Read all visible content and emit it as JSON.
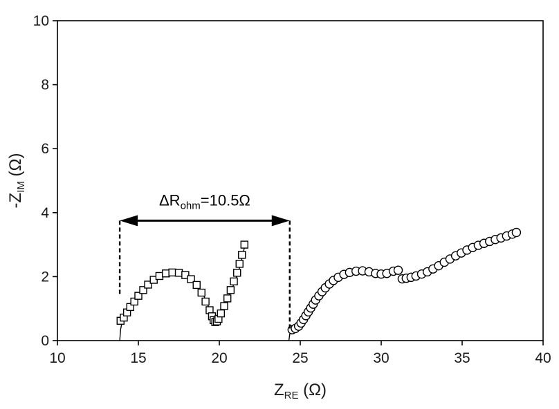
{
  "chart_data": {
    "type": "scatter",
    "title": "",
    "xlabel": "Z",
    "xlabel_sub": "RE",
    "xlabel_unit": " (Ω)",
    "ylabel": "-Z",
    "ylabel_sub": "IM",
    "ylabel_unit": " (Ω)",
    "xlim": [
      10,
      40
    ],
    "ylim": [
      0,
      10
    ],
    "xticks": [
      "10",
      "15",
      "20",
      "25",
      "30",
      "35",
      "40"
    ],
    "yticks": [
      "0",
      "2",
      "4",
      "6",
      "8",
      "10"
    ],
    "grid": false,
    "legend": "none",
    "colors": {
      "marker": "#000000",
      "axis": "#000000",
      "fit": "#000000"
    },
    "series": [
      {
        "marker": "square",
        "points": [
          [
            13.9,
            0.62
          ],
          [
            14.1,
            0.72
          ],
          [
            14.3,
            0.88
          ],
          [
            14.5,
            1.05
          ],
          [
            14.75,
            1.22
          ],
          [
            15.0,
            1.4
          ],
          [
            15.3,
            1.58
          ],
          [
            15.6,
            1.75
          ],
          [
            15.95,
            1.9
          ],
          [
            16.3,
            2.02
          ],
          [
            16.7,
            2.1
          ],
          [
            17.1,
            2.13
          ],
          [
            17.5,
            2.12
          ],
          [
            17.9,
            2.05
          ],
          [
            18.25,
            1.92
          ],
          [
            18.6,
            1.74
          ],
          [
            18.9,
            1.5
          ],
          [
            19.15,
            1.22
          ],
          [
            19.4,
            0.95
          ],
          [
            19.55,
            0.76
          ],
          [
            19.65,
            0.64
          ],
          [
            19.75,
            0.58
          ],
          [
            19.85,
            0.6
          ],
          [
            19.95,
            0.68
          ],
          [
            20.1,
            0.85
          ],
          [
            20.3,
            1.08
          ],
          [
            20.5,
            1.32
          ],
          [
            20.7,
            1.58
          ],
          [
            20.9,
            1.85
          ],
          [
            21.1,
            2.12
          ],
          [
            21.25,
            2.4
          ],
          [
            21.4,
            2.68
          ],
          [
            21.55,
            3.0
          ]
        ]
      },
      {
        "marker": "circle",
        "points": [
          [
            24.5,
            0.34
          ],
          [
            24.7,
            0.38
          ],
          [
            24.9,
            0.45
          ],
          [
            25.05,
            0.55
          ],
          [
            25.2,
            0.66
          ],
          [
            25.35,
            0.78
          ],
          [
            25.5,
            0.9
          ],
          [
            25.65,
            1.02
          ],
          [
            25.8,
            1.14
          ],
          [
            25.95,
            1.27
          ],
          [
            26.15,
            1.4
          ],
          [
            26.35,
            1.53
          ],
          [
            26.55,
            1.65
          ],
          [
            26.8,
            1.77
          ],
          [
            27.05,
            1.88
          ],
          [
            27.35,
            1.98
          ],
          [
            27.7,
            2.07
          ],
          [
            28.05,
            2.13
          ],
          [
            28.45,
            2.17
          ],
          [
            28.85,
            2.18
          ],
          [
            29.25,
            2.15
          ],
          [
            29.65,
            2.1
          ],
          [
            30.0,
            2.08
          ],
          [
            30.35,
            2.1
          ],
          [
            30.75,
            2.17
          ],
          [
            31.05,
            2.2
          ],
          [
            31.3,
            1.93
          ],
          [
            31.55,
            1.95
          ],
          [
            31.85,
            1.98
          ],
          [
            32.15,
            2.02
          ],
          [
            32.5,
            2.08
          ],
          [
            32.85,
            2.15
          ],
          [
            33.2,
            2.24
          ],
          [
            33.55,
            2.34
          ],
          [
            33.9,
            2.45
          ],
          [
            34.25,
            2.55
          ],
          [
            34.6,
            2.65
          ],
          [
            34.95,
            2.74
          ],
          [
            35.3,
            2.83
          ],
          [
            35.65,
            2.91
          ],
          [
            36.0,
            2.98
          ],
          [
            36.35,
            3.04
          ],
          [
            36.7,
            3.1
          ],
          [
            37.05,
            3.16
          ],
          [
            37.4,
            3.21
          ],
          [
            37.75,
            3.27
          ],
          [
            38.1,
            3.33
          ],
          [
            38.35,
            3.38
          ]
        ]
      }
    ],
    "fit_curves": [
      [
        [
          13.85,
          0.0
        ],
        [
          13.9,
          0.35
        ],
        [
          14.05,
          0.72
        ],
        [
          14.4,
          1.1
        ],
        [
          14.9,
          1.42
        ],
        [
          15.5,
          1.72
        ],
        [
          16.2,
          1.98
        ],
        [
          17.0,
          2.1
        ],
        [
          17.8,
          2.06
        ],
        [
          18.5,
          1.82
        ],
        [
          19.0,
          1.45
        ],
        [
          19.4,
          0.98
        ],
        [
          19.65,
          0.66
        ],
        [
          19.8,
          0.57
        ],
        [
          19.95,
          0.63
        ],
        [
          20.2,
          0.88
        ],
        [
          20.6,
          1.38
        ],
        [
          21.0,
          1.9
        ],
        [
          21.3,
          2.35
        ],
        [
          21.6,
          3.02
        ]
      ],
      [
        [
          24.3,
          0.0
        ],
        [
          24.35,
          0.2
        ],
        [
          24.6,
          0.34
        ],
        [
          24.95,
          0.48
        ],
        [
          25.4,
          0.82
        ],
        [
          25.9,
          1.22
        ],
        [
          26.5,
          1.6
        ],
        [
          27.2,
          1.92
        ],
        [
          27.9,
          2.1
        ],
        [
          28.7,
          2.17
        ],
        [
          29.5,
          2.12
        ],
        [
          30.2,
          2.08
        ],
        [
          30.9,
          2.18
        ]
      ]
    ],
    "annotations": [
      {
        "text": "ΔR",
        "sub": "ohm",
        "tail": "=10.5Ω",
        "x_from": 13.85,
        "x_to": 24.35,
        "y": 3.75
      }
    ]
  }
}
